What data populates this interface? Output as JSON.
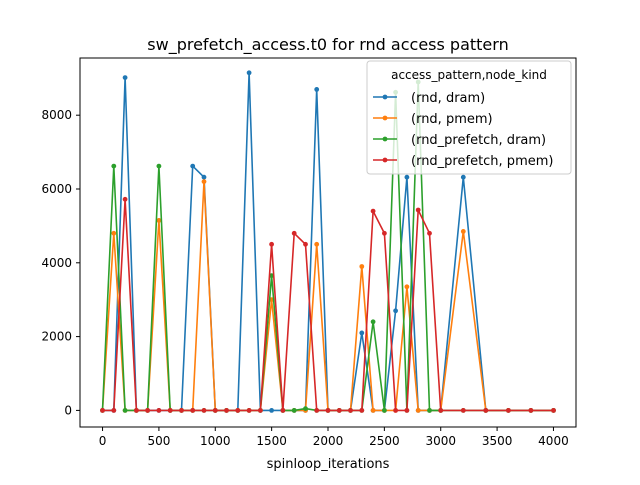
{
  "chart_data": {
    "type": "line",
    "title": "sw_prefetch_access.t0 for rnd access pattern",
    "xlabel": "spinloop_iterations",
    "ylabel": "",
    "xlim": [
      -200,
      4200
    ],
    "ylim": [
      -450,
      9550
    ],
    "xticks": [
      0,
      500,
      1000,
      1500,
      2000,
      2500,
      3000,
      3500,
      4000
    ],
    "yticks": [
      0,
      2000,
      4000,
      6000,
      8000
    ],
    "grid": false,
    "legend": {
      "title": "access_pattern,node_kind",
      "placement": "top-right"
    },
    "series": [
      {
        "name": "(rnd, dram)",
        "color": "#1f77b4",
        "points": [
          [
            0,
            0
          ],
          [
            100,
            0
          ],
          [
            200,
            9020
          ],
          [
            300,
            0
          ],
          [
            400,
            0
          ],
          [
            500,
            0
          ],
          [
            600,
            0
          ],
          [
            700,
            0
          ],
          [
            800,
            6620
          ],
          [
            900,
            6320
          ],
          [
            1000,
            0
          ],
          [
            1100,
            0
          ],
          [
            1200,
            0
          ],
          [
            1300,
            9150
          ],
          [
            1400,
            0
          ],
          [
            1500,
            0
          ],
          [
            1600,
            0
          ],
          [
            1700,
            0
          ],
          [
            1800,
            0
          ],
          [
            1900,
            8700
          ],
          [
            2000,
            0
          ],
          [
            2100,
            0
          ],
          [
            2200,
            0
          ],
          [
            2300,
            2100
          ],
          [
            2400,
            0
          ],
          [
            2500,
            0
          ],
          [
            2600,
            2700
          ],
          [
            2700,
            6320
          ],
          [
            2800,
            0
          ],
          [
            2900,
            0
          ],
          [
            3000,
            0
          ],
          [
            3200,
            6320
          ],
          [
            3400,
            0
          ],
          [
            3600,
            0
          ],
          [
            3800,
            0
          ],
          [
            4000,
            0
          ]
        ]
      },
      {
        "name": "(rnd, pmem)",
        "color": "#ff7f0e",
        "points": [
          [
            0,
            0
          ],
          [
            100,
            4800
          ],
          [
            200,
            0
          ],
          [
            300,
            0
          ],
          [
            400,
            0
          ],
          [
            500,
            5150
          ],
          [
            600,
            0
          ],
          [
            700,
            0
          ],
          [
            800,
            0
          ],
          [
            900,
            6200
          ],
          [
            1000,
            0
          ],
          [
            1100,
            0
          ],
          [
            1200,
            0
          ],
          [
            1300,
            0
          ],
          [
            1400,
            0
          ],
          [
            1500,
            3000
          ],
          [
            1600,
            0
          ],
          [
            1700,
            0
          ],
          [
            1800,
            0
          ],
          [
            1900,
            4500
          ],
          [
            2000,
            0
          ],
          [
            2100,
            0
          ],
          [
            2200,
            0
          ],
          [
            2300,
            3900
          ],
          [
            2400,
            0
          ],
          [
            2500,
            0
          ],
          [
            2600,
            0
          ],
          [
            2700,
            3350
          ],
          [
            2800,
            0
          ],
          [
            2900,
            0
          ],
          [
            3000,
            0
          ],
          [
            3200,
            4850
          ],
          [
            3400,
            0
          ],
          [
            3600,
            0
          ],
          [
            3800,
            0
          ],
          [
            4000,
            0
          ]
        ]
      },
      {
        "name": "(rnd_prefetch, dram)",
        "color": "#2ca02c",
        "points": [
          [
            0,
            0
          ],
          [
            100,
            6620
          ],
          [
            200,
            0
          ],
          [
            300,
            0
          ],
          [
            400,
            0
          ],
          [
            500,
            6620
          ],
          [
            600,
            0
          ],
          [
            700,
            0
          ],
          [
            800,
            0
          ],
          [
            900,
            0
          ],
          [
            1000,
            0
          ],
          [
            1100,
            0
          ],
          [
            1200,
            0
          ],
          [
            1300,
            0
          ],
          [
            1400,
            0
          ],
          [
            1500,
            3650
          ],
          [
            1600,
            0
          ],
          [
            1700,
            0
          ],
          [
            1800,
            50
          ],
          [
            1900,
            0
          ],
          [
            2000,
            0
          ],
          [
            2100,
            0
          ],
          [
            2200,
            0
          ],
          [
            2300,
            0
          ],
          [
            2400,
            2400
          ],
          [
            2500,
            0
          ],
          [
            2600,
            8620
          ],
          [
            2700,
            0
          ],
          [
            2800,
            8900
          ],
          [
            2900,
            0
          ],
          [
            3000,
            0
          ],
          [
            3200,
            0
          ],
          [
            3400,
            0
          ],
          [
            3600,
            0
          ],
          [
            3800,
            0
          ],
          [
            4000,
            0
          ]
        ]
      },
      {
        "name": "(rnd_prefetch, pmem)",
        "color": "#d62728",
        "points": [
          [
            0,
            0
          ],
          [
            100,
            0
          ],
          [
            200,
            5720
          ],
          [
            300,
            0
          ],
          [
            400,
            0
          ],
          [
            500,
            0
          ],
          [
            600,
            0
          ],
          [
            700,
            0
          ],
          [
            800,
            0
          ],
          [
            900,
            0
          ],
          [
            1000,
            0
          ],
          [
            1100,
            0
          ],
          [
            1200,
            0
          ],
          [
            1300,
            0
          ],
          [
            1400,
            0
          ],
          [
            1500,
            4500
          ],
          [
            1600,
            0
          ],
          [
            1700,
            4800
          ],
          [
            1800,
            4500
          ],
          [
            1900,
            0
          ],
          [
            2000,
            0
          ],
          [
            2100,
            0
          ],
          [
            2200,
            0
          ],
          [
            2300,
            0
          ],
          [
            2400,
            5400
          ],
          [
            2500,
            4800
          ],
          [
            2600,
            0
          ],
          [
            2700,
            0
          ],
          [
            2800,
            5430
          ],
          [
            2900,
            4800
          ],
          [
            3000,
            0
          ],
          [
            3200,
            0
          ],
          [
            3400,
            0
          ],
          [
            3600,
            0
          ],
          [
            3800,
            0
          ],
          [
            4000,
            0
          ]
        ]
      }
    ]
  }
}
